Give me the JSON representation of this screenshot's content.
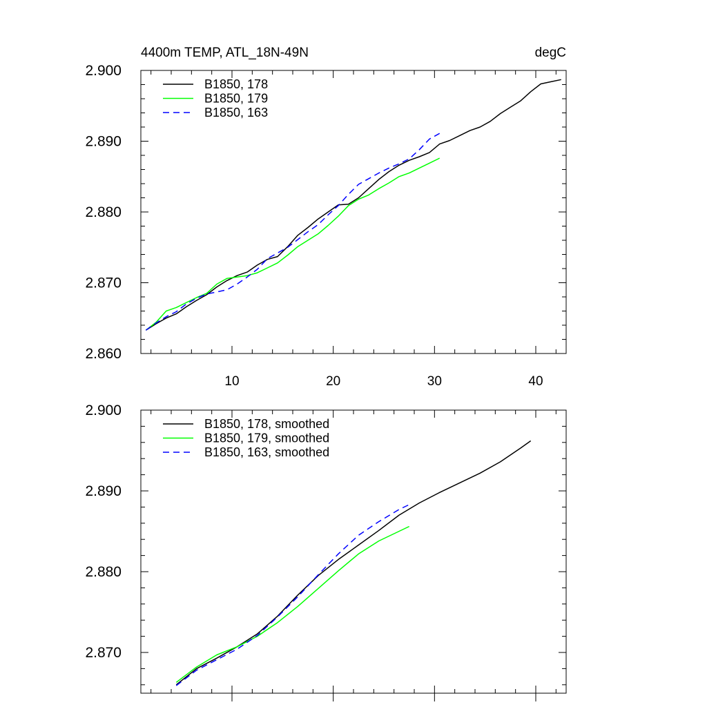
{
  "chart_data": [
    {
      "type": "line",
      "title": "4400m TEMP, ATL_18N-49N",
      "units": "degC",
      "xlabel": "",
      "ylabel": "",
      "xlim": [
        1,
        43
      ],
      "ylim": [
        2.86,
        2.9
      ],
      "xticks": [
        10,
        20,
        30,
        40
      ],
      "xtick_labels": [
        "10",
        "20",
        "30",
        "40"
      ],
      "yticks": [
        2.86,
        2.87,
        2.88,
        2.89,
        2.9
      ],
      "ytick_labels": [
        "2.860",
        "2.870",
        "2.880",
        "2.890",
        "2.900"
      ],
      "legend_position": "top-left",
      "series": [
        {
          "name": "B1850, 178",
          "color": "#000000",
          "dash": "solid",
          "x": [
            1.5,
            2.5,
            3.5,
            4.5,
            5.5,
            6.5,
            7.5,
            8.5,
            9.5,
            10.5,
            11.5,
            12.5,
            13.5,
            14.5,
            15.5,
            16.5,
            17.5,
            18.5,
            19.5,
            20.5,
            21.5,
            22.5,
            23.5,
            24.5,
            25.5,
            26.5,
            27.5,
            28.5,
            29.5,
            30.5,
            31.5,
            32.5,
            33.5,
            34.5,
            35.5,
            36.5,
            37.5,
            38.5,
            39.5,
            40.5,
            41.5,
            42.5
          ],
          "values": [
            2.8633,
            2.8642,
            2.865,
            2.8656,
            2.8666,
            2.8675,
            2.8683,
            2.8694,
            2.8703,
            2.871,
            2.8715,
            2.8725,
            2.8733,
            2.8737,
            2.8751,
            2.8767,
            2.8778,
            2.879,
            2.88,
            2.881,
            2.8811,
            2.882,
            2.8833,
            2.8846,
            2.8857,
            2.8866,
            2.8873,
            2.8878,
            2.8884,
            2.8896,
            2.8901,
            2.8908,
            2.8915,
            2.892,
            2.8928,
            2.8939,
            2.8948,
            2.8957,
            2.897,
            2.8981,
            2.8984,
            2.8987
          ]
        },
        {
          "name": "B1850, 179",
          "color": "#00ff00",
          "dash": "solid",
          "x": [
            1.5,
            2.5,
            3.5,
            4.5,
            5.5,
            6.5,
            7.5,
            8.5,
            9.5,
            10.5,
            11.5,
            12.5,
            13.5,
            14.5,
            15.5,
            16.5,
            17.5,
            18.5,
            19.5,
            20.5,
            21.5,
            22.5,
            23.5,
            24.5,
            25.5,
            26.5,
            27.5,
            28.5,
            29.5,
            30.5
          ],
          "values": [
            2.8633,
            2.8644,
            2.866,
            2.8665,
            2.8672,
            2.8679,
            2.8685,
            2.8698,
            2.8706,
            2.8708,
            2.871,
            2.8714,
            2.8721,
            2.8728,
            2.8739,
            2.8751,
            2.876,
            2.8769,
            2.8781,
            2.8794,
            2.8809,
            2.8818,
            2.8824,
            2.8833,
            2.8841,
            2.885,
            2.8855,
            2.8862,
            2.8869,
            2.8876
          ]
        },
        {
          "name": "B1850, 163",
          "color": "#0000ff",
          "dash": "dashed",
          "x": [
            1.5,
            2.5,
            3.5,
            4.5,
            5.5,
            6.5,
            7.5,
            8.5,
            9.5,
            10.5,
            11.5,
            12.5,
            13.5,
            14.5,
            15.5,
            16.5,
            17.5,
            18.5,
            19.5,
            20.5,
            21.5,
            22.5,
            23.5,
            24.5,
            25.5,
            26.5,
            27.5,
            28.5,
            29.5,
            30.5
          ],
          "values": [
            2.8633,
            2.8643,
            2.8652,
            2.8659,
            2.867,
            2.8678,
            2.8684,
            2.8687,
            2.869,
            2.8698,
            2.8708,
            2.8719,
            2.8734,
            2.8742,
            2.875,
            2.8761,
            2.8772,
            2.8782,
            2.8796,
            2.8809,
            2.8825,
            2.8839,
            2.8847,
            2.8855,
            2.8862,
            2.8868,
            2.8875,
            2.8888,
            2.8903,
            2.8911
          ]
        }
      ]
    },
    {
      "type": "line",
      "title": "",
      "xlabel": "",
      "ylabel": "",
      "xlim": [
        1,
        43
      ],
      "ylim": [
        2.865,
        2.9
      ],
      "xticks": [
        10,
        20,
        30,
        40
      ],
      "xtick_labels": [],
      "yticks": [
        2.87,
        2.88,
        2.89,
        2.9
      ],
      "ytick_labels": [
        "2.870",
        "2.880",
        "2.890",
        "2.900"
      ],
      "legend_position": "top-left",
      "series": [
        {
          "name": "B1850, 178, smoothed",
          "color": "#000000",
          "dash": "solid",
          "x": [
            4.5,
            6.5,
            8.5,
            10.5,
            12.5,
            14.5,
            16.5,
            18.5,
            20.5,
            22.5,
            24.5,
            26.5,
            28.5,
            30.5,
            32.5,
            34.5,
            36.5,
            38.5,
            39.5
          ],
          "values": [
            2.866,
            2.868,
            2.8693,
            2.8707,
            2.8723,
            2.8745,
            2.8771,
            2.8795,
            2.8815,
            2.8833,
            2.8851,
            2.887,
            2.8885,
            2.8898,
            2.891,
            2.8922,
            2.8936,
            2.8953,
            2.8962
          ]
        },
        {
          "name": "B1850, 179, smoothed",
          "color": "#00ff00",
          "dash": "solid",
          "x": [
            4.5,
            6.5,
            8.5,
            10.5,
            12.5,
            14.5,
            16.5,
            18.5,
            20.5,
            22.5,
            24.5,
            26.5,
            27.5
          ],
          "values": [
            2.8663,
            2.8682,
            2.8697,
            2.8707,
            2.872,
            2.8737,
            2.8757,
            2.8779,
            2.8801,
            2.8822,
            2.8838,
            2.885,
            2.8856
          ]
        },
        {
          "name": "B1850, 163, smoothed",
          "color": "#0000ff",
          "dash": "dashed",
          "x": [
            4.5,
            6.5,
            8.5,
            10.5,
            12.5,
            14.5,
            16.5,
            18.5,
            20.5,
            22.5,
            24.5,
            26.5,
            27.5
          ],
          "values": [
            2.8659,
            2.8678,
            2.8691,
            2.8704,
            2.8721,
            2.8744,
            2.8769,
            2.8796,
            2.8822,
            2.8845,
            2.8862,
            2.8877,
            2.8883
          ]
        }
      ]
    }
  ]
}
